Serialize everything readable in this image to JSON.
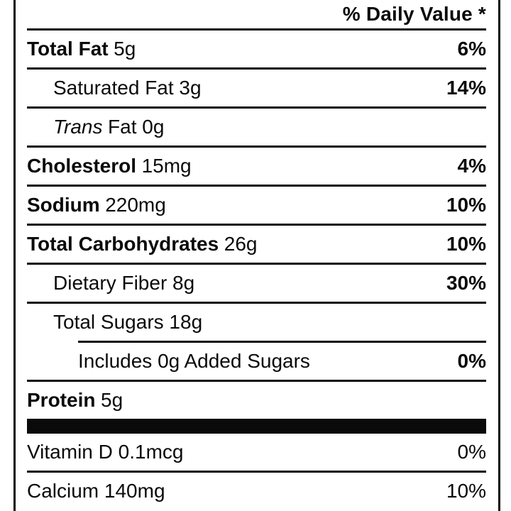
{
  "label": {
    "header": {
      "daily_value": "% Daily Value *"
    },
    "rows": [
      {
        "italic": "",
        "bold": "Total Fat",
        "plain": "5g",
        "dv": "6%",
        "dv_bold": true,
        "indent": 0,
        "divider": "full"
      },
      {
        "italic": "",
        "bold": "",
        "plain": "Saturated Fat 3g",
        "dv": "14%",
        "dv_bold": true,
        "indent": 1,
        "divider": "full"
      },
      {
        "italic": "Trans",
        "bold": "",
        "plain": "Fat 0g",
        "dv": "",
        "dv_bold": false,
        "indent": 1,
        "divider": "full"
      },
      {
        "italic": "",
        "bold": "Cholesterol",
        "plain": "15mg",
        "dv": "4%",
        "dv_bold": true,
        "indent": 0,
        "divider": "full"
      },
      {
        "italic": "",
        "bold": "Sodium",
        "plain": "220mg",
        "dv": "10%",
        "dv_bold": true,
        "indent": 0,
        "divider": "full"
      },
      {
        "italic": "",
        "bold": "Total Carbohydrates",
        "plain": "26g",
        "dv": "10%",
        "dv_bold": true,
        "indent": 0,
        "divider": "full"
      },
      {
        "italic": "",
        "bold": "",
        "plain": "Dietary Fiber 8g",
        "dv": "30%",
        "dv_bold": true,
        "indent": 1,
        "divider": "full"
      },
      {
        "italic": "",
        "bold": "",
        "plain": "Total Sugars 18g",
        "dv": "",
        "dv_bold": false,
        "indent": 1,
        "divider": "indented"
      },
      {
        "italic": "",
        "bold": "",
        "plain": "Includes 0g Added Sugars",
        "dv": "0%",
        "dv_bold": true,
        "indent": 2,
        "divider": "full"
      },
      {
        "italic": "",
        "bold": "Protein",
        "plain": "5g",
        "dv": "",
        "dv_bold": false,
        "indent": 0,
        "divider": "thick"
      },
      {
        "italic": "",
        "bold": "",
        "plain": "Vitamin D 0.1mcg",
        "dv": "0%",
        "dv_bold": false,
        "indent": 0,
        "divider": "full"
      },
      {
        "italic": "",
        "bold": "",
        "plain": "Calcium 140mg",
        "dv": "10%",
        "dv_bold": false,
        "indent": 0,
        "divider": "none"
      }
    ],
    "colors": {
      "ink": "#0a0a0a",
      "background": "#ffffff"
    }
  }
}
